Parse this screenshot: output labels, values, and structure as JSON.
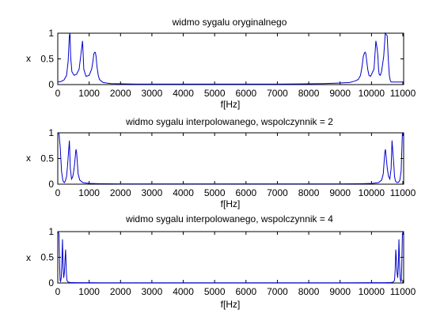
{
  "chart_data": [
    {
      "type": "line",
      "title": "widmo sygalu oryginalnego",
      "xlabel": "f[Hz]",
      "ylabel": "x",
      "xlim": [
        0,
        11025
      ],
      "ylim": [
        0,
        1
      ],
      "xticks": [
        0,
        1000,
        2000,
        3000,
        4000,
        5000,
        6000,
        7000,
        8000,
        9000,
        10000,
        11000
      ],
      "yticks": [
        0,
        0.5,
        1
      ],
      "grid": false,
      "series": [
        {
          "color": "#0000cc",
          "x": [
            0,
            100,
            200,
            280,
            330,
            370,
            390,
            410,
            450,
            520,
            600,
            680,
            730,
            760,
            790,
            830,
            900,
            1000,
            1080,
            1120,
            1150,
            1180,
            1200,
            1220,
            1250,
            1290,
            1330,
            1380,
            1450,
            1550,
            1700,
            2000,
            2500,
            3000,
            4000,
            5000,
            5512,
            6000,
            7000,
            8000,
            8500,
            9000,
            9300,
            9480,
            9580,
            9650,
            9700,
            9740,
            9780,
            9800,
            9820,
            9850,
            9880,
            9920,
            9970,
            10080,
            10140,
            10180,
            10205,
            10225,
            10245,
            10280,
            10320,
            10390,
            10440,
            10500,
            10540,
            10570,
            10595,
            10615,
            10630,
            10650,
            10680,
            10750,
            10850,
            10950,
            11025
          ],
          "y": [
            0.05,
            0.06,
            0.09,
            0.18,
            0.45,
            0.95,
            1.0,
            0.55,
            0.25,
            0.18,
            0.2,
            0.3,
            0.55,
            0.7,
            0.85,
            0.3,
            0.16,
            0.18,
            0.3,
            0.45,
            0.6,
            0.63,
            0.62,
            0.55,
            0.35,
            0.18,
            0.1,
            0.07,
            0.04,
            0.03,
            0.02,
            0.015,
            0.01,
            0.01,
            0.01,
            0.01,
            0.01,
            0.01,
            0.01,
            0.015,
            0.02,
            0.03,
            0.04,
            0.07,
            0.1,
            0.18,
            0.35,
            0.55,
            0.62,
            0.63,
            0.6,
            0.45,
            0.3,
            0.18,
            0.16,
            0.3,
            0.85,
            0.7,
            0.55,
            0.3,
            0.2,
            0.18,
            0.25,
            0.55,
            1.0,
            0.95,
            0.45,
            0.18,
            0.09,
            0.06,
            0.05,
            0.05,
            0.05,
            0.05,
            0.05,
            0.05,
            0.05
          ]
        }
      ]
    },
    {
      "type": "line",
      "title": "widmo sygalu interpolowanego, wspolczynnik = 2",
      "xlabel": "f[Hz]",
      "ylabel": "x",
      "xlim": [
        0,
        11025
      ],
      "ylim": [
        0,
        1
      ],
      "xticks": [
        0,
        1000,
        2000,
        3000,
        4000,
        5000,
        6000,
        7000,
        8000,
        9000,
        10000,
        11000
      ],
      "yticks": [
        0,
        0.5,
        1
      ],
      "grid": false,
      "series": [
        {
          "color": "#0000cc",
          "x": [
            0,
            40,
            80,
            120,
            160,
            190,
            210,
            240,
            280,
            310,
            340,
            370,
            400,
            440,
            480,
            520,
            560,
            580,
            600,
            620,
            650,
            700,
            800,
            1000,
            1300,
            2000,
            3000,
            5512,
            8000,
            9000,
            9700,
            10025,
            10225,
            10325,
            10375,
            10405,
            10425,
            10445,
            10465,
            10505,
            10545,
            10585,
            10625,
            10655,
            10685,
            10715,
            10735,
            10765,
            10815,
            10865,
            10905,
            10945,
            10985,
            11025
          ],
          "y": [
            1.0,
            0.98,
            0.7,
            0.25,
            0.08,
            0.04,
            0.03,
            0.06,
            0.15,
            0.35,
            0.6,
            0.85,
            0.3,
            0.1,
            0.15,
            0.3,
            0.55,
            0.68,
            0.62,
            0.45,
            0.2,
            0.08,
            0.03,
            0.015,
            0.01,
            0.005,
            0.005,
            0.005,
            0.005,
            0.005,
            0.01,
            0.015,
            0.03,
            0.08,
            0.2,
            0.45,
            0.62,
            0.68,
            0.55,
            0.3,
            0.15,
            0.1,
            0.3,
            0.85,
            0.6,
            0.35,
            0.15,
            0.06,
            0.03,
            0.04,
            0.08,
            0.25,
            0.98,
            1.0
          ]
        }
      ]
    },
    {
      "type": "line",
      "title": "widmo sygalu interpolowanego, wspolczynnik = 4",
      "xlabel": "f[Hz]",
      "ylabel": "x",
      "xlim": [
        0,
        11025
      ],
      "ylim": [
        0,
        1
      ],
      "xticks": [
        0,
        1000,
        2000,
        3000,
        4000,
        5000,
        6000,
        7000,
        8000,
        9000,
        10000,
        11000
      ],
      "yticks": [
        0,
        0.5,
        1
      ],
      "grid": false,
      "series": [
        {
          "color": "#0000cc",
          "x": [
            0,
            20,
            40,
            60,
            75,
            90,
            110,
            130,
            150,
            170,
            190,
            210,
            230,
            250,
            270,
            290,
            310,
            340,
            400,
            600,
            1000,
            2000,
            5512,
            9000,
            10025,
            10425,
            10625,
            10685,
            10715,
            10735,
            10755,
            10775,
            10795,
            10815,
            10835,
            10855,
            10875,
            10895,
            10915,
            10935,
            10950,
            10965,
            10985,
            11005,
            11025
          ],
          "y": [
            1.0,
            0.99,
            0.95,
            0.3,
            0.05,
            0.03,
            0.1,
            0.4,
            0.85,
            0.3,
            0.1,
            0.2,
            0.45,
            0.65,
            0.25,
            0.06,
            0.03,
            0.015,
            0.01,
            0.005,
            0.005,
            0.003,
            0.003,
            0.003,
            0.005,
            0.005,
            0.01,
            0.015,
            0.03,
            0.06,
            0.25,
            0.65,
            0.45,
            0.2,
            0.1,
            0.3,
            0.85,
            0.4,
            0.1,
            0.03,
            0.05,
            0.3,
            0.95,
            0.99,
            1.0
          ]
        }
      ]
    }
  ]
}
